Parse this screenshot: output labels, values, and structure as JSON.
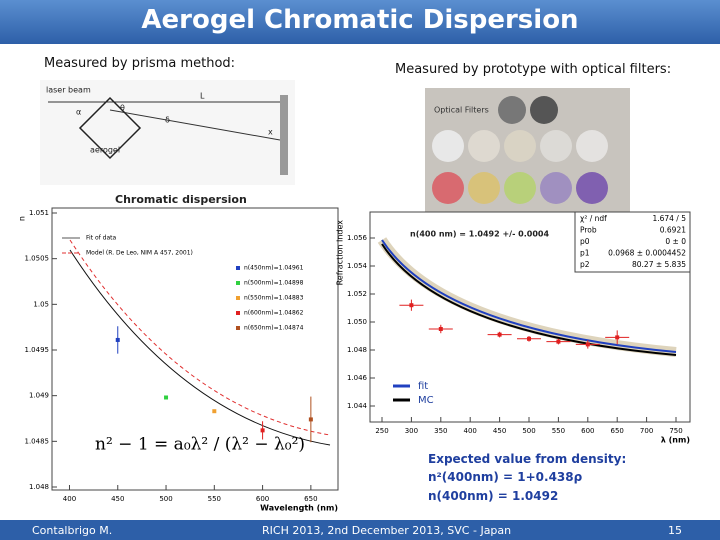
{
  "header": {
    "title": "Aerogel Chromatic Dispersion"
  },
  "left": {
    "label": "Measured by  prisma method:",
    "diagram": {
      "laser": "laser beam",
      "distance": "L",
      "sample": "aerogel",
      "screen": "x",
      "alpha": "α",
      "theta": "θ",
      "delta": "δ"
    },
    "plot": {
      "title": "Chromatic dispersion",
      "x_label": "Wavelength (nm)",
      "y_label": "n",
      "xlim": [
        385,
        675
      ],
      "ylim": [
        1.048,
        1.051
      ],
      "xticks": [
        400,
        450,
        500,
        550,
        600,
        650
      ],
      "yticks": [
        1.048,
        1.0485,
        1.049,
        1.0495,
        1.05,
        1.0505,
        1.051
      ],
      "legend": [
        {
          "name": "Fit of data",
          "color": "#555555"
        },
        {
          "name": "Model (R. De Leo, NIM A 457, 2001)",
          "color": "#e03030"
        },
        {
          "name": "n(450nm)=1.04961",
          "color": "#2040c0"
        },
        {
          "name": "n(500nm)=1.04898",
          "color": "#30d040"
        },
        {
          "name": "n(550nm)=1.04883",
          "color": "#f0a030"
        },
        {
          "name": "n(600nm)=1.04862",
          "color": "#e02020"
        },
        {
          "name": "n(650nm)=1.04874",
          "color": "#b05020"
        }
      ],
      "points": {
        "x": [
          450,
          500,
          550,
          600,
          650
        ],
        "values": [
          1.04961,
          1.04898,
          1.04883,
          1.04862,
          1.04874
        ],
        "errors": [
          0.00015,
          0,
          0,
          0.0001,
          0.00025
        ],
        "colors": [
          "#2040c0",
          "#30d040",
          "#f0a030",
          "#e02020",
          "#b05020"
        ]
      },
      "formula": "n² − 1 = a₀λ² / (λ² − λ₀²)"
    }
  },
  "right": {
    "label": "Measured by prototype with optical filters:",
    "photo": {
      "caption": "Optical Filters"
    },
    "plot": {
      "title": "n(400 nm) = 1.0492 +/- 0.0004",
      "x_label": "λ (nm)",
      "y_label": "Refraction Index",
      "xlim": [
        250,
        750
      ],
      "ylim": [
        1.044,
        1.056
      ],
      "xticks": [
        250,
        300,
        350,
        400,
        450,
        500,
        550,
        600,
        650,
        700,
        750
      ],
      "yticks": [
        1.044,
        1.046,
        1.048,
        {
          "value": 1.05,
          "label": "1.050"
        },
        1.052,
        1.054,
        1.056
      ],
      "stats": [
        [
          "χ² / ndf",
          "1.674 / 5"
        ],
        [
          "Prob",
          "0.6921"
        ],
        [
          "p0",
          "0 ±  0"
        ],
        [
          "p1",
          "0.0968 ± 0.0004452"
        ],
        [
          "p2",
          "80.27 ± 5.835"
        ]
      ],
      "legend": [
        {
          "name": "fit",
          "color": "#2040c0"
        },
        {
          "name": "MC",
          "color": "#000000"
        }
      ],
      "points": {
        "color": "#e02020",
        "x": [
          300,
          350,
          450,
          500,
          550,
          600,
          650
        ],
        "values": [
          1.0512,
          1.0495,
          1.0491,
          1.0488,
          1.0486,
          1.0484,
          1.0489
        ],
        "errors": [
          0.0004,
          0.0003,
          0.0002,
          0.0002,
          0.0002,
          0.0003,
          0.0005
        ]
      }
    }
  },
  "expected": {
    "heading": "Expected value from density:",
    "line1": "n²(400nm) = 1+0.438ρ",
    "line2": "n(400nm) = 1.0492"
  },
  "footer": {
    "author": "Contalbrigo M.",
    "event": "RICH 2013, 2nd December 2013, SVC - Japan",
    "page": "15"
  }
}
